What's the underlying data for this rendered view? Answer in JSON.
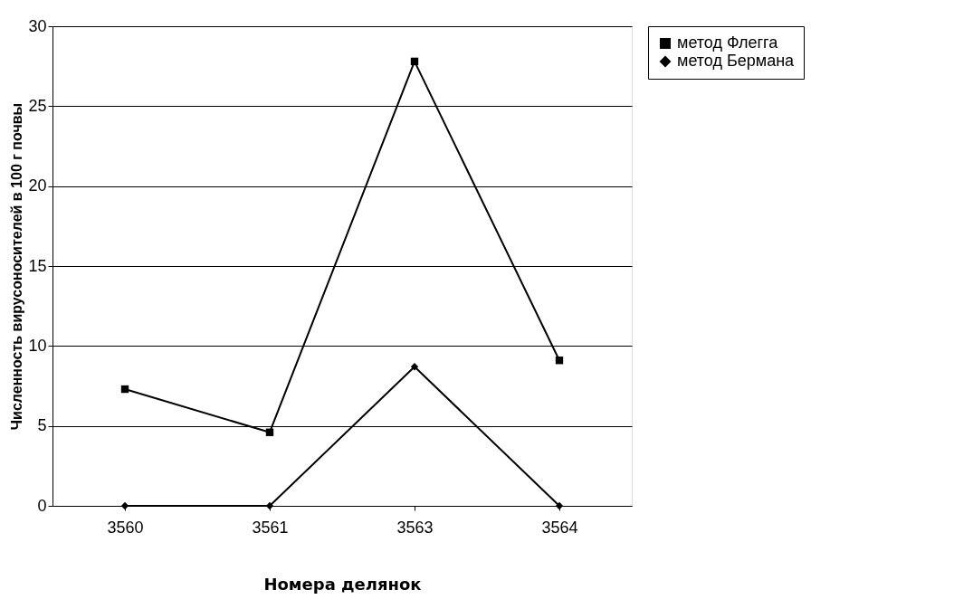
{
  "chart_data": {
    "type": "line",
    "xlabel": "Номера делянок",
    "ylabel": "Численность вирусоносителей в 100 г почвы",
    "categories": [
      "3560",
      "3561",
      "3563",
      "3564"
    ],
    "series": [
      {
        "name": "метод Флегга",
        "color": "#000000",
        "marker": "square",
        "values": [
          7.3,
          4.6,
          27.8,
          9.1
        ]
      },
      {
        "name": "метод Бермана",
        "color": "#000000",
        "marker": "diamond",
        "values": [
          0,
          0,
          8.7,
          0
        ]
      }
    ],
    "ylim": [
      0,
      30
    ],
    "yticks": [
      0,
      5,
      10,
      15,
      20,
      25,
      30
    ],
    "grid": "y",
    "legend": "right",
    "line_style": "solid"
  }
}
